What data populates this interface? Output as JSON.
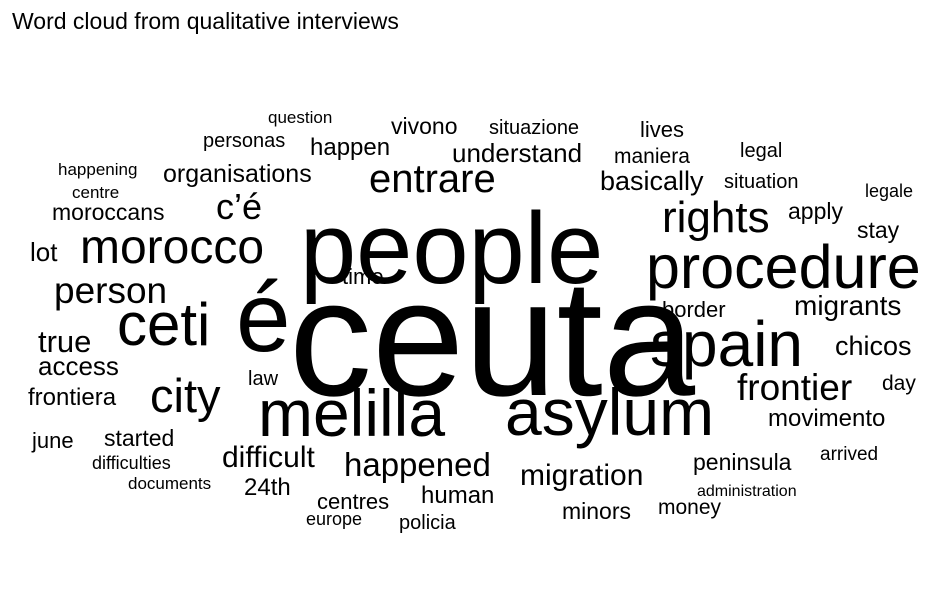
{
  "chart_data": {
    "type": "word-cloud",
    "title": "Word cloud from qualitative interviews",
    "text_color": "#000000",
    "background": "#ffffff",
    "words": [
      {
        "text": "ceuta",
        "weight": 100
      },
      {
        "text": "people",
        "weight": 62
      },
      {
        "text": "é",
        "weight": 60
      },
      {
        "text": "asylum",
        "weight": 46
      },
      {
        "text": "melilla",
        "weight": 46
      },
      {
        "text": "spain",
        "weight": 44
      },
      {
        "text": "procedure",
        "weight": 42
      },
      {
        "text": "ceti",
        "weight": 42
      },
      {
        "text": "morocco",
        "weight": 37
      },
      {
        "text": "city",
        "weight": 33
      },
      {
        "text": "rights",
        "weight": 33
      },
      {
        "text": "entrare",
        "weight": 31
      },
      {
        "text": "frontier",
        "weight": 29
      },
      {
        "text": "person",
        "weight": 29
      },
      {
        "text": "c’é",
        "weight": 28
      },
      {
        "text": "happened",
        "weight": 25
      },
      {
        "text": "migration",
        "weight": 24
      },
      {
        "text": "true",
        "weight": 23
      },
      {
        "text": "migrants",
        "weight": 22
      },
      {
        "text": "chicos",
        "weight": 22
      },
      {
        "text": "difficult",
        "weight": 22
      },
      {
        "text": "basically",
        "weight": 21
      },
      {
        "text": "access",
        "weight": 21
      },
      {
        "text": "understand",
        "weight": 20
      },
      {
        "text": "movimento",
        "weight": 20
      },
      {
        "text": "lot",
        "weight": 20
      },
      {
        "text": "organisations",
        "weight": 20
      },
      {
        "text": "happen",
        "weight": 19
      },
      {
        "text": "frontiera",
        "weight": 19
      },
      {
        "text": "human",
        "weight": 19
      },
      {
        "text": "moroccans",
        "weight": 19
      },
      {
        "text": "peninsula",
        "weight": 19
      },
      {
        "text": "stay",
        "weight": 19
      },
      {
        "text": "started",
        "weight": 19
      },
      {
        "text": "vivono",
        "weight": 19
      },
      {
        "text": "apply",
        "weight": 19
      },
      {
        "text": "24th",
        "weight": 19
      },
      {
        "text": "border",
        "weight": 18
      },
      {
        "text": "minors",
        "weight": 18
      },
      {
        "text": "lives",
        "weight": 18
      },
      {
        "text": "time",
        "weight": 18
      },
      {
        "text": "centres",
        "weight": 18
      },
      {
        "text": "june",
        "weight": 18
      },
      {
        "text": "day",
        "weight": 18
      },
      {
        "text": "situazione",
        "weight": 17
      },
      {
        "text": "maniera",
        "weight": 17
      },
      {
        "text": "situation",
        "weight": 17
      },
      {
        "text": "legal",
        "weight": 17
      },
      {
        "text": "money",
        "weight": 17
      },
      {
        "text": "policia",
        "weight": 17
      },
      {
        "text": "personas",
        "weight": 17
      },
      {
        "text": "law",
        "weight": 17
      },
      {
        "text": "arrived",
        "weight": 16
      },
      {
        "text": "legale",
        "weight": 16
      },
      {
        "text": "europe",
        "weight": 16
      },
      {
        "text": "difficulties",
        "weight": 16
      },
      {
        "text": "question",
        "weight": 15
      },
      {
        "text": "happening",
        "weight": 15
      },
      {
        "text": "centre",
        "weight": 15
      },
      {
        "text": "documents",
        "weight": 15
      },
      {
        "text": "administration",
        "weight": 15
      }
    ]
  }
}
